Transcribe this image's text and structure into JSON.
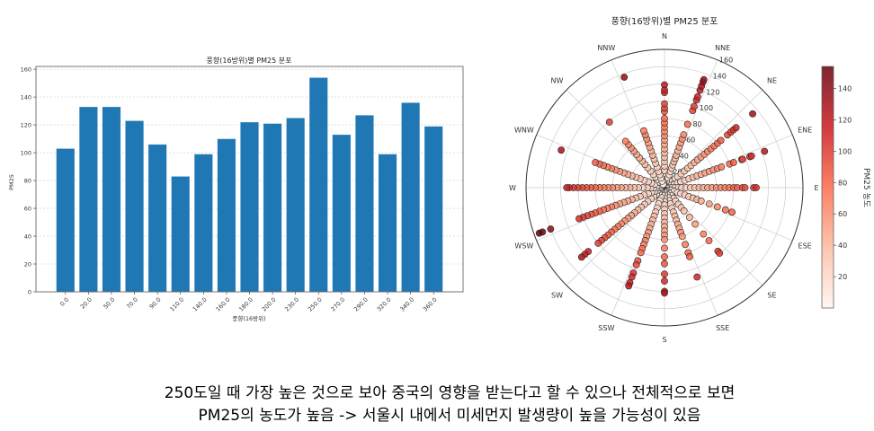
{
  "chart_data": [
    {
      "type": "bar",
      "title": "풍향(16방위)별 PM25 분포",
      "xlabel": "풍향(16방위)",
      "ylabel": "PM25",
      "categories": [
        "0.0",
        "20.0",
        "50.0",
        "70.0",
        "90.0",
        "110.0",
        "140.0",
        "160.0",
        "180.0",
        "200.0",
        "230.0",
        "250.0",
        "270.0",
        "290.0",
        "320.0",
        "340.0",
        "360.0"
      ],
      "values": [
        103,
        133,
        133,
        123,
        106,
        83,
        99,
        110,
        122,
        121,
        125,
        154,
        113,
        127,
        99,
        136,
        119
      ],
      "ylim": [
        0,
        162
      ],
      "yticks": [
        0,
        20,
        40,
        60,
        80,
        100,
        120,
        140,
        160
      ],
      "grid": "y dashed",
      "color": "#1f77b4"
    },
    {
      "type": "scatter",
      "subtype": "polar",
      "title": "풍향(16방위)별 PM25 분포",
      "direction_labels": [
        "N",
        "NNE",
        "NE",
        "ENE",
        "E",
        "ESE",
        "SE",
        "SSE",
        "S",
        "SSW",
        "SW",
        "WSW",
        "W",
        "WNW",
        "NW",
        "NNW"
      ],
      "rlim": [
        0,
        160
      ],
      "rticks": [
        20,
        40,
        60,
        80,
        100,
        120,
        140,
        160
      ],
      "colormap": "Reds",
      "colorbar_label": "PM25 농도",
      "colorbar_ticks": [
        20,
        40,
        60,
        80,
        100,
        120,
        140
      ],
      "color_range": [
        0,
        154
      ],
      "points": [
        {
          "angle": 0,
          "values": [
            3,
            8,
            12,
            16,
            20,
            25,
            30,
            35,
            40,
            45,
            50,
            55,
            60,
            65,
            70,
            75,
            80,
            88,
            92,
            97,
            110,
            113,
            119
          ]
        },
        {
          "angle": 20,
          "values": [
            4,
            8,
            12,
            16,
            20,
            24,
            28,
            32,
            36,
            40,
            45,
            50,
            55,
            60,
            65,
            78,
            95,
            100,
            108,
            112,
            120,
            125,
            130,
            133
          ]
        },
        {
          "angle": 50,
          "values": [
            4,
            8,
            12,
            16,
            20,
            25,
            30,
            35,
            40,
            45,
            50,
            55,
            60,
            65,
            70,
            75,
            80,
            85,
            95,
            100,
            104,
            108,
            133
          ]
        },
        {
          "angle": 70,
          "values": [
            4,
            8,
            12,
            16,
            20,
            25,
            30,
            35,
            40,
            45,
            50,
            55,
            60,
            65,
            70,
            80,
            85,
            95,
            96,
            105,
            107,
            123
          ]
        },
        {
          "angle": 90,
          "values": [
            4,
            8,
            12,
            16,
            20,
            25,
            30,
            35,
            40,
            45,
            50,
            55,
            60,
            65,
            70,
            75,
            80,
            84,
            90,
            93,
            103,
            106
          ]
        },
        {
          "angle": 110,
          "values": [
            4,
            8,
            12,
            16,
            20,
            25,
            30,
            35,
            40,
            45,
            55,
            65,
            75,
            83
          ]
        },
        {
          "angle": 140,
          "values": [
            4,
            8,
            12,
            16,
            20,
            25,
            30,
            35,
            45,
            55,
            70,
            80,
            96,
            99
          ]
        },
        {
          "angle": 160,
          "values": [
            4,
            8,
            12,
            16,
            20,
            25,
            30,
            35,
            40,
            45,
            50,
            55,
            60,
            70,
            80,
            85,
            110
          ]
        },
        {
          "angle": 180,
          "values": [
            4,
            8,
            12,
            16,
            20,
            25,
            30,
            35,
            40,
            45,
            50,
            55,
            60,
            70,
            80,
            88,
            100,
            108,
            120,
            122
          ]
        },
        {
          "angle": 200,
          "values": [
            4,
            8,
            12,
            16,
            20,
            25,
            30,
            35,
            40,
            45,
            50,
            55,
            60,
            65,
            70,
            75,
            80,
            90,
            95,
            105,
            110,
            117,
            121
          ]
        },
        {
          "angle": 230,
          "values": [
            4,
            8,
            12,
            16,
            20,
            25,
            30,
            35,
            40,
            45,
            50,
            55,
            60,
            65,
            70,
            75,
            80,
            85,
            90,
            95,
            100,
            115,
            120,
            125
          ]
        },
        {
          "angle": 250,
          "values": [
            4,
            8,
            12,
            16,
            20,
            25,
            30,
            35,
            40,
            45,
            50,
            55,
            60,
            65,
            70,
            75,
            80,
            85,
            90,
            95,
            100,
            105,
            140,
            150,
            154
          ]
        },
        {
          "angle": 270,
          "values": [
            4,
            8,
            12,
            16,
            20,
            25,
            30,
            35,
            40,
            45,
            50,
            55,
            60,
            65,
            70,
            75,
            80,
            85,
            90,
            95,
            100,
            105,
            110,
            113
          ]
        },
        {
          "angle": 290,
          "values": [
            4,
            8,
            12,
            16,
            20,
            25,
            30,
            35,
            40,
            45,
            50,
            55,
            60,
            65,
            70,
            75,
            80,
            85,
            127
          ]
        },
        {
          "angle": 320,
          "values": [
            4,
            8,
            12,
            16,
            20,
            25,
            30,
            35,
            40,
            45,
            50,
            55,
            60,
            65,
            70,
            99
          ]
        },
        {
          "angle": 340,
          "values": [
            4,
            8,
            12,
            16,
            20,
            25,
            30,
            35,
            40,
            45,
            50,
            55,
            60,
            65,
            70,
            136
          ]
        }
      ]
    }
  ],
  "caption": {
    "line1": "250도일 때 가장 높은 것으로 보아 중국의 영향을 받는다고 할 수 있으나 전체적으로 보면",
    "line2": "PM25의 농도가 높음 -> 서울시 내에서 미세먼지 발생량이 높을 가능성이 있음"
  }
}
